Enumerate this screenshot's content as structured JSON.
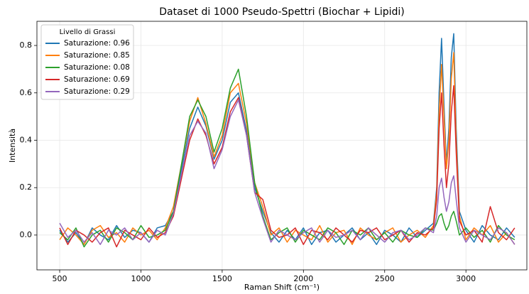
{
  "chart_data": {
    "type": "line",
    "title": "Dataset di 1000 Pseudo-Spettri (Biochar + Lipidi)",
    "x_label": "Raman Shift (cm⁻¹)",
    "y_label": "Intensità",
    "legend_title": "Livello di Grassi",
    "legend_position": "upper left",
    "grid": true,
    "xlim": [
      360,
      3375
    ],
    "ylim": [
      -0.147,
      0.902
    ],
    "xticks": [
      500,
      1000,
      1500,
      2000,
      2500,
      3000
    ],
    "yticks": [
      {
        "value": 0,
        "label": "0.0"
      },
      0.2,
      0.4,
      0.6,
      0.8
    ],
    "x": [
      500,
      550,
      600,
      650,
      700,
      750,
      800,
      850,
      900,
      950,
      1000,
      1050,
      1100,
      1150,
      1200,
      1250,
      1300,
      1350,
      1400,
      1450,
      1500,
      1550,
      1600,
      1650,
      1700,
      1750,
      1800,
      1850,
      1900,
      1950,
      2000,
      2050,
      2100,
      2150,
      2200,
      2250,
      2300,
      2350,
      2400,
      2450,
      2500,
      2550,
      2600,
      2650,
      2700,
      2750,
      2800,
      2820,
      2835,
      2850,
      2865,
      2880,
      2895,
      2910,
      2925,
      2940,
      2960,
      3000,
      3050,
      3100,
      3150,
      3200,
      3250,
      3300
    ],
    "series": [
      {
        "name": "Saturazione: 0.96",
        "color": "#1f77b4",
        "values": [
          0.02,
          -0.03,
          0.01,
          -0.04,
          0.03,
          0.0,
          -0.02,
          0.04,
          -0.01,
          0.02,
          0.01,
          -0.03,
          0.03,
          0.04,
          0.1,
          0.28,
          0.45,
          0.54,
          0.46,
          0.32,
          0.4,
          0.56,
          0.6,
          0.44,
          0.2,
          0.1,
          0.01,
          -0.03,
          0.02,
          -0.02,
          0.03,
          -0.04,
          0.01,
          0.02,
          -0.03,
          0.0,
          0.03,
          -0.02,
          0.01,
          -0.04,
          0.02,
          0.0,
          -0.03,
          0.03,
          -0.01,
          0.02,
          0.05,
          0.2,
          0.6,
          0.83,
          0.55,
          0.3,
          0.45,
          0.75,
          0.85,
          0.45,
          0.1,
          0.02,
          -0.03,
          0.04,
          0.0,
          -0.02,
          0.03,
          -0.01
        ]
      },
      {
        "name": "Saturazione: 0.85",
        "color": "#ff7f0e",
        "values": [
          -0.02,
          0.03,
          0.0,
          -0.04,
          0.02,
          0.04,
          -0.01,
          0.01,
          -0.03,
          0.03,
          0.0,
          0.02,
          -0.02,
          0.03,
          0.12,
          0.3,
          0.48,
          0.58,
          0.47,
          0.33,
          0.42,
          0.6,
          0.64,
          0.47,
          0.22,
          0.12,
          0.0,
          0.03,
          -0.03,
          0.02,
          0.0,
          -0.02,
          0.04,
          -0.03,
          0.01,
          0.02,
          -0.04,
          0.03,
          0.0,
          -0.02,
          0.01,
          0.03,
          -0.03,
          0.0,
          0.02,
          -0.01,
          0.04,
          0.18,
          0.52,
          0.72,
          0.5,
          0.28,
          0.4,
          0.66,
          0.77,
          0.4,
          0.08,
          -0.02,
          0.03,
          0.0,
          0.04,
          -0.03,
          0.01,
          -0.04
        ]
      },
      {
        "name": "Saturazione: 0.08",
        "color": "#2ca02c",
        "values": [
          0.01,
          -0.02,
          0.03,
          -0.05,
          0.0,
          0.02,
          -0.03,
          0.03,
          0.01,
          -0.02,
          0.04,
          -0.01,
          0.0,
          0.02,
          0.1,
          0.3,
          0.5,
          0.57,
          0.5,
          0.35,
          0.45,
          0.62,
          0.7,
          0.5,
          0.22,
          0.08,
          -0.02,
          0.01,
          0.03,
          -0.03,
          0.02,
          0.0,
          -0.02,
          0.03,
          0.01,
          -0.04,
          0.02,
          0.0,
          0.03,
          -0.02,
          0.01,
          -0.03,
          0.02,
          0.0,
          -0.01,
          0.03,
          0.02,
          0.05,
          0.08,
          0.09,
          0.05,
          0.02,
          0.04,
          0.08,
          0.1,
          0.06,
          0.0,
          0.03,
          -0.01,
          0.02,
          -0.03,
          0.04,
          0.0,
          -0.02
        ]
      },
      {
        "name": "Saturazione: 0.69",
        "color": "#d62728",
        "values": [
          0.03,
          -0.04,
          0.02,
          0.0,
          -0.03,
          0.01,
          0.03,
          -0.05,
          0.02,
          0.0,
          -0.02,
          0.03,
          -0.01,
          0.01,
          0.08,
          0.24,
          0.4,
          0.49,
          0.42,
          0.3,
          0.37,
          0.52,
          0.58,
          0.42,
          0.18,
          0.15,
          0.02,
          -0.01,
          0.0,
          0.03,
          -0.04,
          0.02,
          0.01,
          -0.02,
          0.03,
          0.0,
          -0.03,
          0.02,
          0.01,
          0.03,
          -0.02,
          0.0,
          0.02,
          -0.03,
          0.01,
          0.0,
          0.03,
          0.15,
          0.45,
          0.6,
          0.38,
          0.2,
          0.3,
          0.52,
          0.63,
          0.35,
          0.06,
          0.0,
          0.02,
          -0.03,
          0.12,
          0.01,
          -0.02,
          0.03
        ]
      },
      {
        "name": "Saturazione: 0.29",
        "color": "#9467bd",
        "values": [
          0.05,
          -0.01,
          0.02,
          -0.03,
          0.01,
          -0.04,
          0.02,
          0.0,
          0.03,
          -0.02,
          0.01,
          -0.03,
          0.02,
          0.0,
          0.09,
          0.26,
          0.42,
          0.48,
          0.43,
          0.28,
          0.36,
          0.5,
          0.57,
          0.42,
          0.18,
          0.07,
          -0.03,
          0.02,
          0.0,
          -0.02,
          0.01,
          0.03,
          -0.03,
          0.02,
          -0.01,
          0.0,
          0.02,
          -0.02,
          0.03,
          0.0,
          -0.03,
          0.01,
          0.02,
          -0.02,
          0.0,
          0.03,
          0.01,
          0.08,
          0.2,
          0.24,
          0.16,
          0.1,
          0.14,
          0.22,
          0.25,
          0.15,
          0.03,
          -0.03,
          0.02,
          0.0,
          -0.02,
          0.03,
          0.01,
          -0.04
        ]
      }
    ]
  }
}
